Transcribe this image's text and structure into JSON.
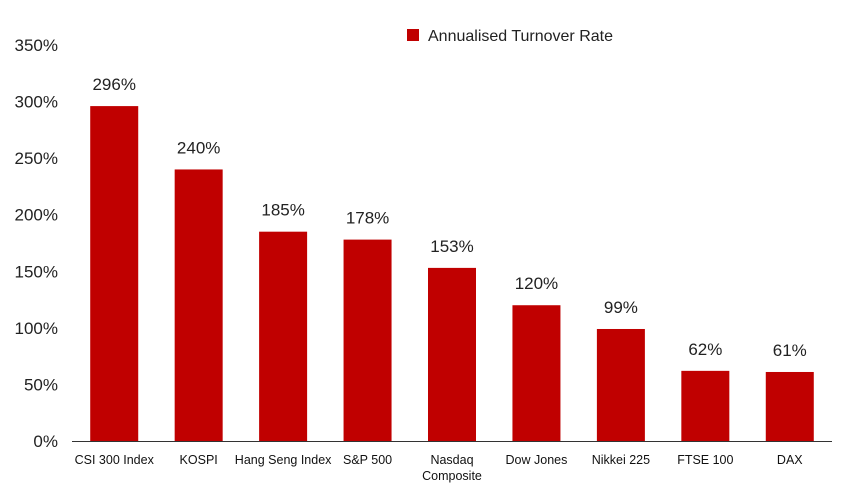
{
  "chart_data": {
    "type": "bar",
    "categories": [
      [
        "CSI 300 Index"
      ],
      [
        "KOSPI"
      ],
      [
        "Hang Seng Index"
      ],
      [
        "S&P 500"
      ],
      [
        "Nasdaq",
        "Composite"
      ],
      [
        "Dow Jones"
      ],
      [
        "Nikkei 225"
      ],
      [
        "FTSE 100"
      ],
      [
        "DAX"
      ]
    ],
    "series": [
      {
        "name": "Annualised Turnover Rate",
        "values": [
          296,
          240,
          185,
          178,
          153,
          120,
          99,
          62,
          61
        ],
        "data_labels": [
          "296%",
          "240%",
          "185%",
          "178%",
          "153%",
          "120%",
          "99%",
          "62%",
          "61%"
        ]
      }
    ],
    "yticks": [
      "0%",
      "50%",
      "100%",
      "150%",
      "200%",
      "250%",
      "300%",
      "350%"
    ],
    "ylim": [
      0,
      350
    ],
    "grid": false,
    "legend_position": "top-right",
    "bar_color": "#C00000"
  }
}
